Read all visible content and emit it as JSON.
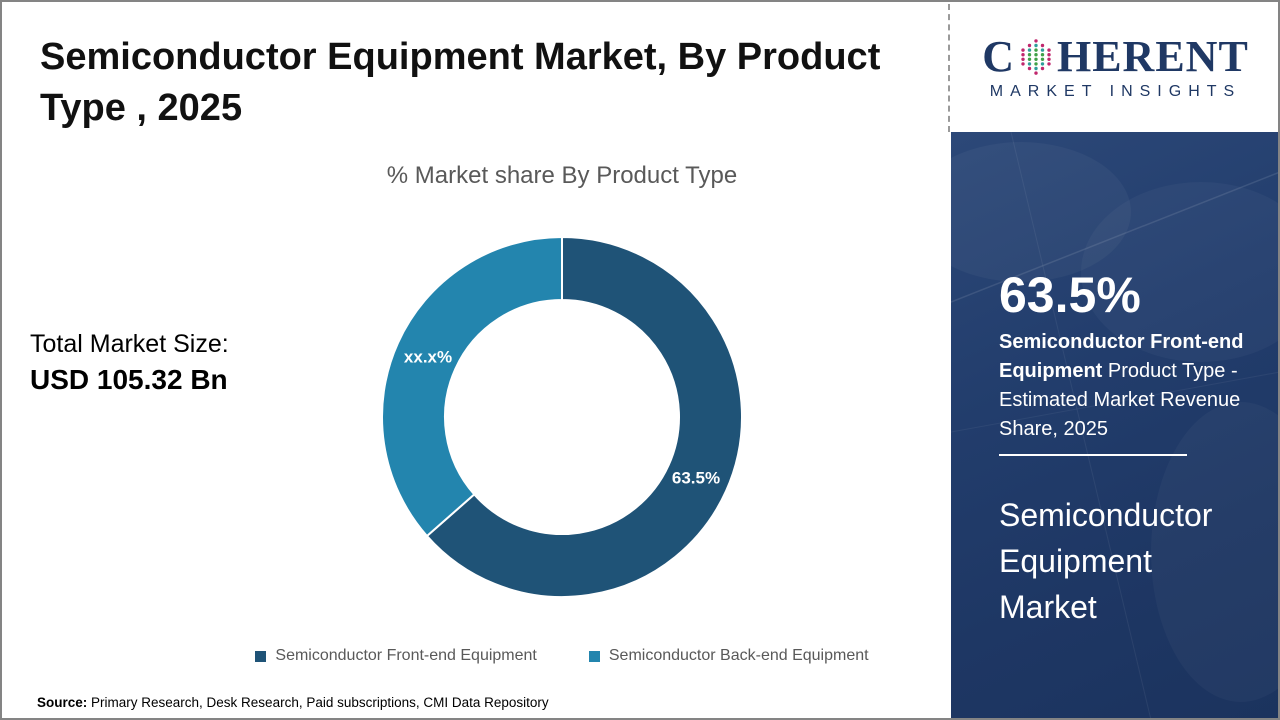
{
  "header": {
    "title": "Semiconductor Equipment Market, By Product Type , 2025",
    "title_lines": [
      "Semiconductor Equipment Market, By Product",
      "Type , 2025"
    ]
  },
  "logo": {
    "part1": "C",
    "part2": "HERENT",
    "tagline": "MARKET INSIGHTS",
    "navy": "#1F3864",
    "globe_colors": {
      "outer": "#C0276D",
      "mid": "#2E9E9B",
      "inner": "#3FA047"
    }
  },
  "chart": {
    "subtitle": "% Market share By Product Type"
  },
  "chart_data": {
    "type": "pie",
    "donut": true,
    "title": "% Market share By Product Type",
    "categories": [
      "Semiconductor Front-end Equipment",
      "Semiconductor Back-end Equipment"
    ],
    "values": [
      63.5,
      36.5
    ],
    "labels": [
      "63.5%",
      "xx.x%"
    ],
    "colors": [
      "#1F5377",
      "#2385AE"
    ],
    "start_angle_deg": 0,
    "direction": "clockwise",
    "legend_position": "bottom"
  },
  "total_market": {
    "label": "Total Market Size:",
    "value": "USD 105.32 Bn"
  },
  "sidebar": {
    "stat_value": "63.5%",
    "stat_bold": "Semiconductor Front-end Equipment",
    "stat_rest": " Product Type - Estimated Market Revenue Share, 2025",
    "market_name": "Semiconductor Equipment Market"
  },
  "source": {
    "label": "Source:",
    "text": " Primary Research, Desk Research, Paid subscriptions, CMI Data Repository"
  }
}
